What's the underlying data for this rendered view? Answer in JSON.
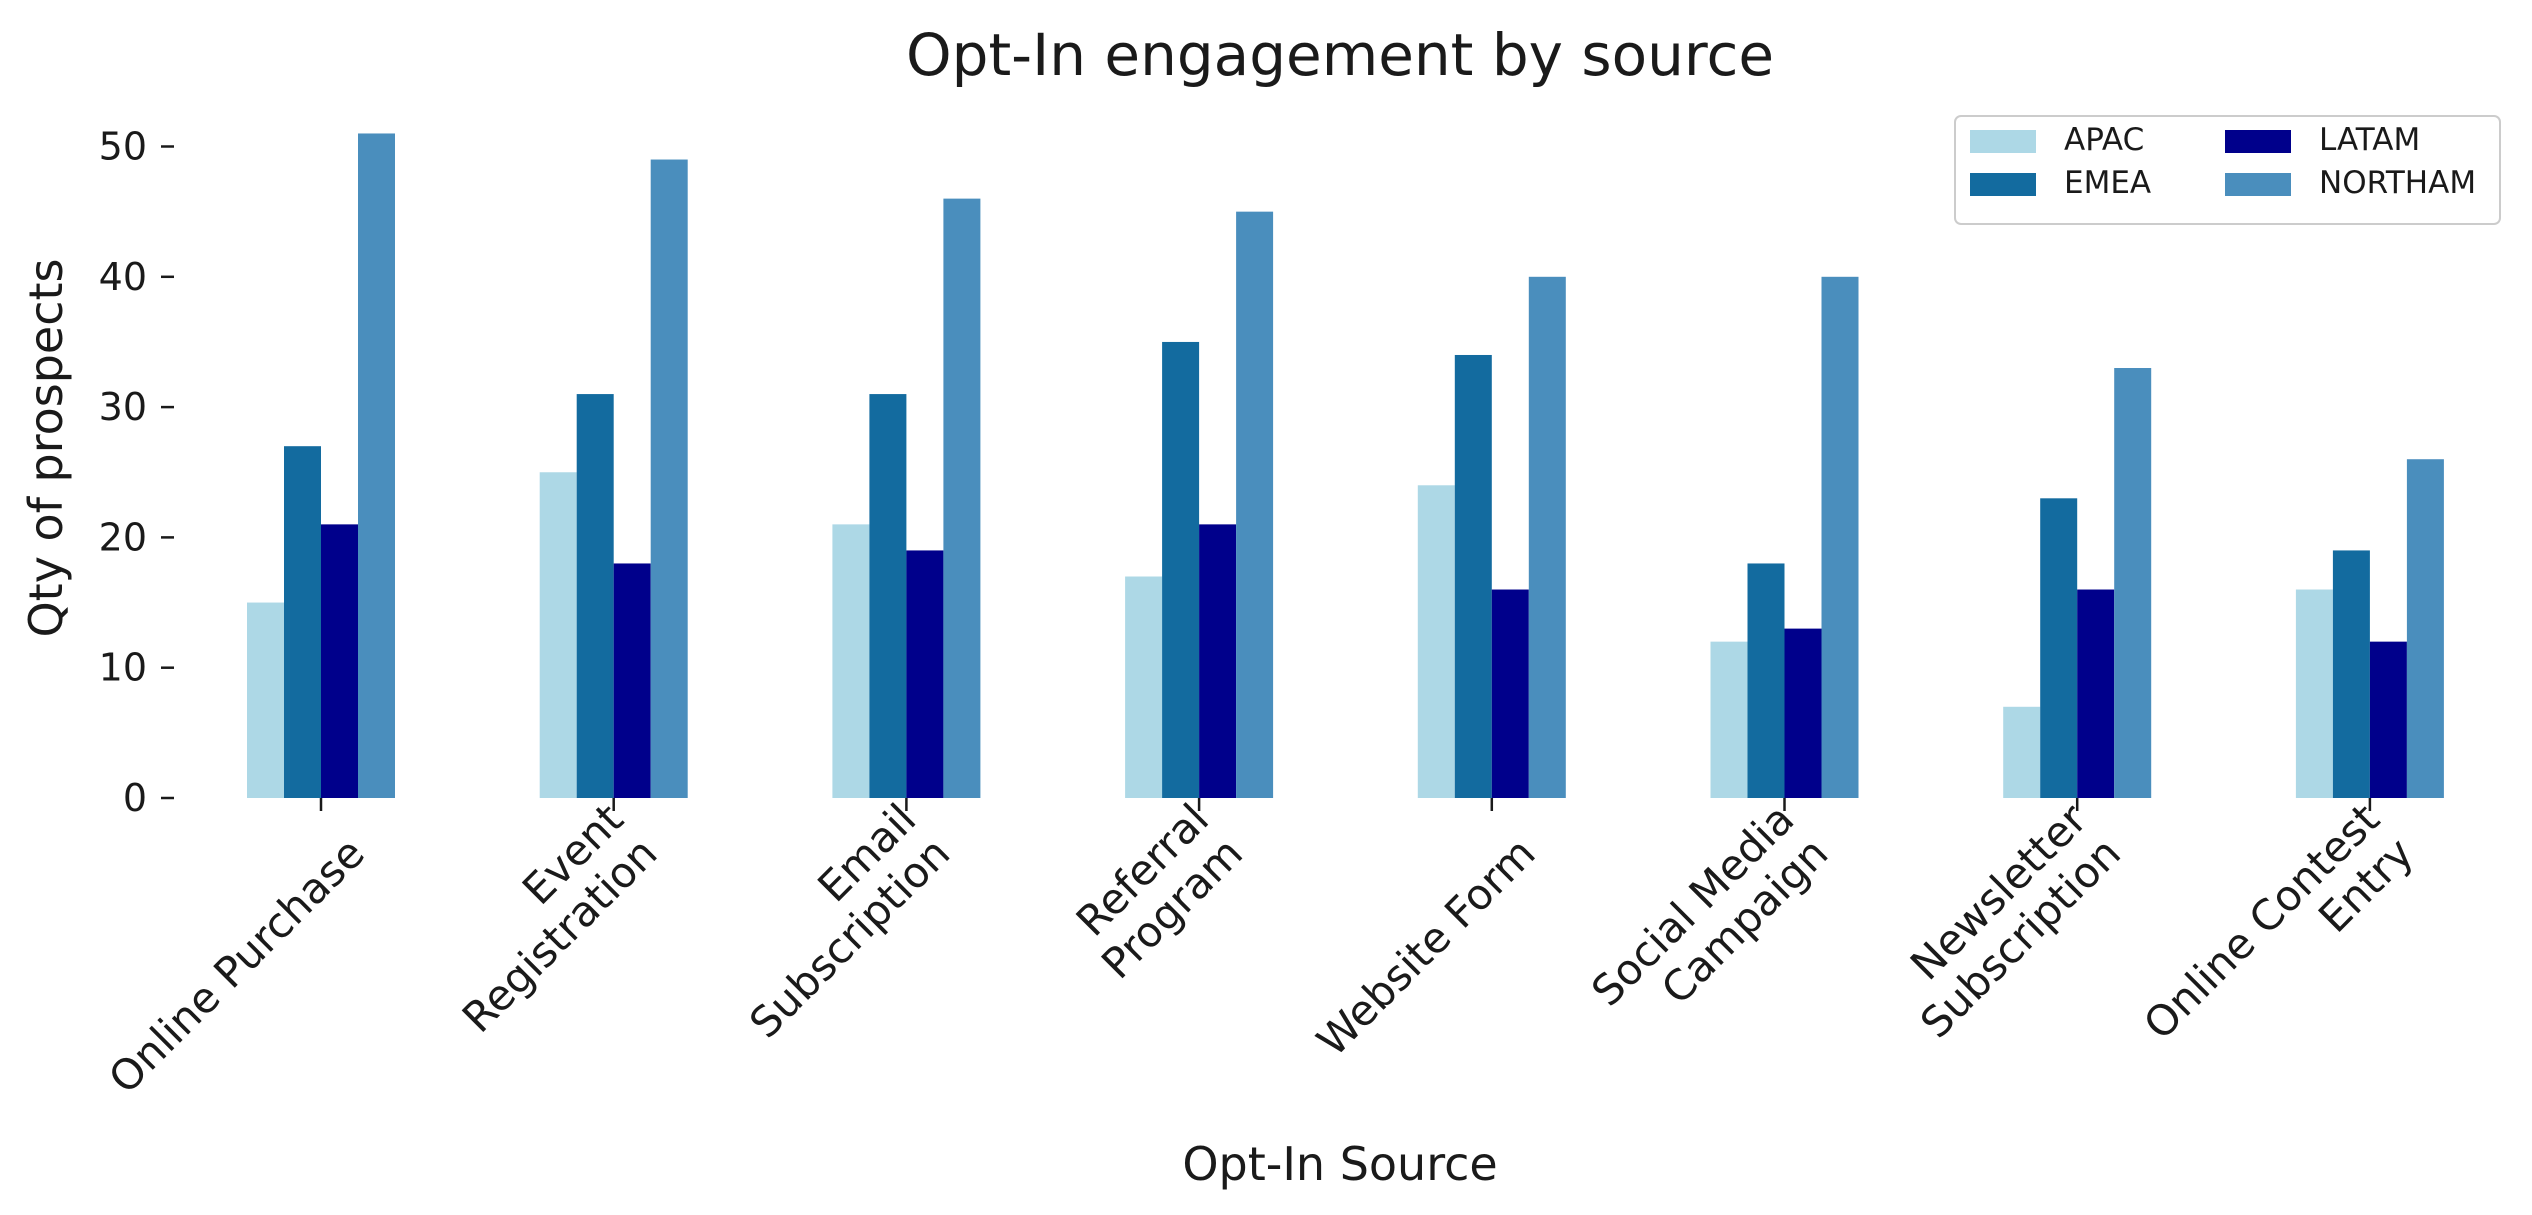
{
  "chart_data": {
    "type": "bar",
    "title": "Opt-In engagement by source",
    "xlabel": "Opt-In Source",
    "ylabel": "Qty of prospects",
    "ylim": [
      0,
      52
    ],
    "yticks": [
      0,
      10,
      20,
      30,
      40,
      50
    ],
    "grid": false,
    "legend_position": "top-right",
    "legend_columns": 2,
    "categories": [
      [
        "Online Purchase"
      ],
      [
        "Event",
        "Registration"
      ],
      [
        "Email",
        "Subscription"
      ],
      [
        "Referral",
        "Program"
      ],
      [
        "Website Form"
      ],
      [
        "Social Media",
        "Campaign"
      ],
      [
        "Newsletter",
        "Subscription"
      ],
      [
        "Online Contest",
        "Entry"
      ]
    ],
    "series": [
      {
        "name": "APAC",
        "color": "#add8e6",
        "values": [
          15,
          25,
          21,
          17,
          24,
          12,
          7,
          16
        ]
      },
      {
        "name": "EMEA",
        "color": "#136b9f",
        "values": [
          27,
          31,
          31,
          35,
          34,
          18,
          23,
          19
        ]
      },
      {
        "name": "LATAM",
        "color": "#00008b",
        "values": [
          21,
          18,
          19,
          21,
          16,
          13,
          16,
          12
        ]
      },
      {
        "name": "NORTHAM",
        "color": "#4a8ebd",
        "values": [
          51,
          49,
          46,
          45,
          40,
          40,
          33,
          26
        ]
      }
    ]
  }
}
